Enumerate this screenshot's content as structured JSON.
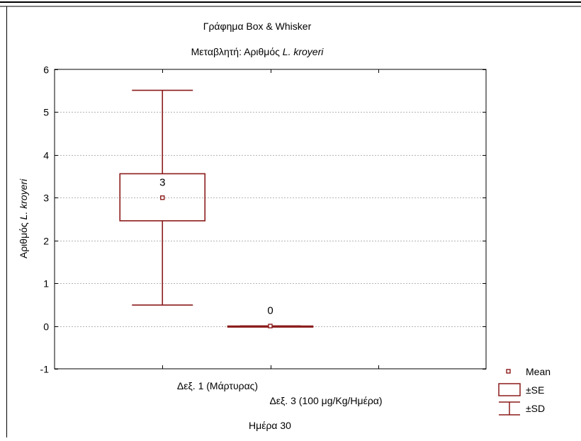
{
  "chart_data": {
    "type": "box",
    "title": "Γράφημα Box & Whisker",
    "subtitle_prefix": "Μεταβλητή: Αριθμός ",
    "subtitle_italic": "L. kroyeri",
    "ylabel_prefix": "Αριθμός ",
    "ylabel_italic": "L. kroyeri",
    "xlabel": "Ημέρα 30",
    "ylim": [
      -1,
      6
    ],
    "yticks": [
      "6",
      "5",
      "4",
      "3",
      "2",
      "1",
      "0",
      "-1"
    ],
    "grid": true,
    "categories": [
      "Δεξ. 1 (Μάρτυρας)",
      "Δεξ. 3 (100 μg/Kg/Ημέρα)"
    ],
    "boxes": [
      {
        "category": "Δεξ. 1 (Μάρτυρας)",
        "mean": 3,
        "se_low": 2.46,
        "se_high": 3.56,
        "sd_low": 0.49,
        "sd_high": 5.51,
        "label": "3"
      },
      {
        "category": "Δεξ. 3 (100 μg/Kg/Ημέρα)",
        "mean": 0,
        "se_low": 0,
        "se_high": 0,
        "sd_low": 0,
        "sd_high": 0,
        "label": "0"
      }
    ],
    "legend": {
      "placement": "bottom-right",
      "mean": "Mean",
      "se": "±SE",
      "sd": "±SD"
    },
    "colors": {
      "series": "#8b1a1a",
      "grid": "#b4b4b4",
      "axis": "#000000"
    }
  }
}
